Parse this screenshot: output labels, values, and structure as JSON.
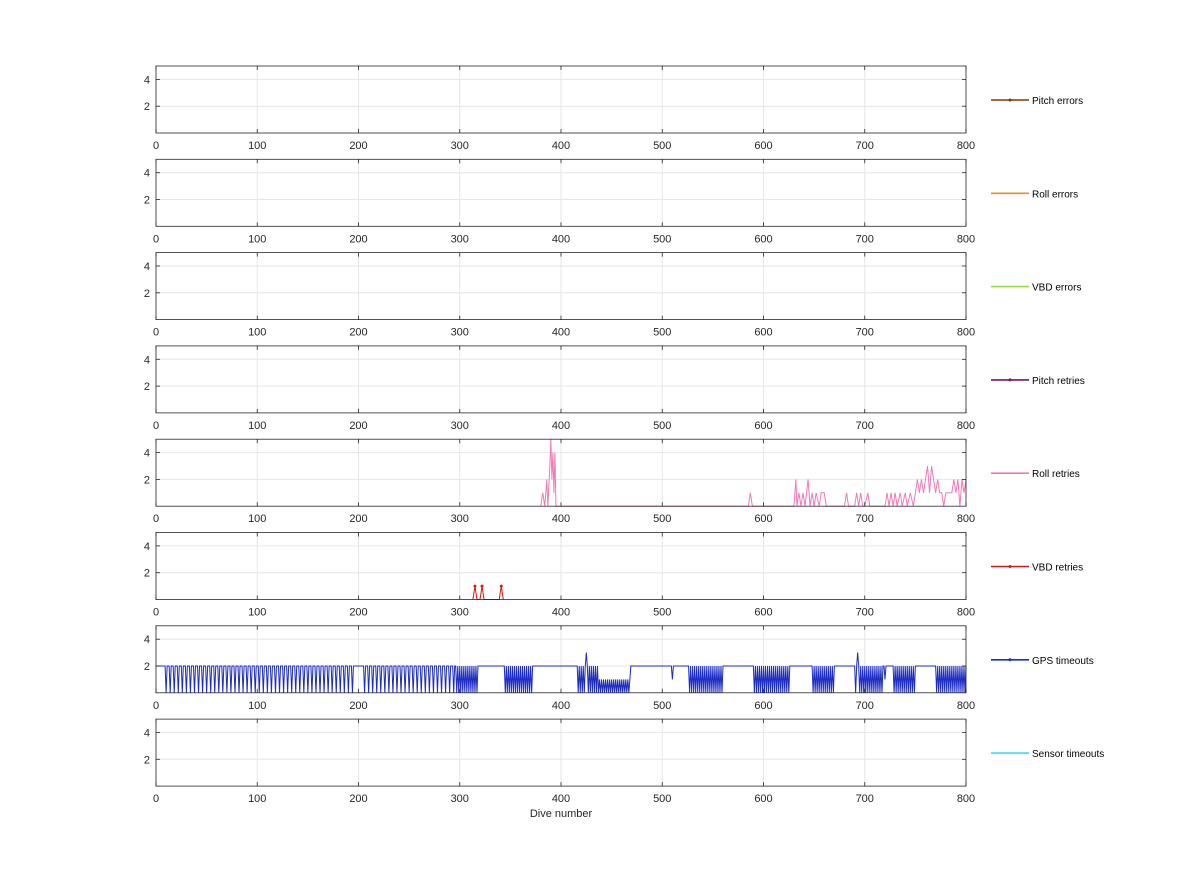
{
  "chart_data": {
    "type": "line",
    "xlabel": "Dive number",
    "xlim": [
      0,
      800
    ],
    "ylim": [
      0,
      5
    ],
    "xticks": [
      "0",
      "100",
      "200",
      "300",
      "400",
      "500",
      "600",
      "700",
      "800"
    ],
    "yticks": [
      "2",
      "4"
    ],
    "grid": true,
    "legend_placement": "right of each panel",
    "panels": [
      {
        "name": "Pitch errors",
        "color": "#7a3b0e",
        "marker": true,
        "points": []
      },
      {
        "name": "Roll errors",
        "color": "#f08c28",
        "marker": false,
        "points": []
      },
      {
        "name": "VBD errors",
        "color": "#8ee03c",
        "marker": false,
        "points": []
      },
      {
        "name": "Pitch retries",
        "color": "#6a1a6a",
        "marker": true,
        "points": []
      },
      {
        "name": "Roll retries",
        "color": "#f07ab8",
        "marker": false,
        "points": [
          [
            380,
            0
          ],
          [
            382,
            1
          ],
          [
            384,
            0
          ],
          [
            386,
            2
          ],
          [
            387,
            0
          ],
          [
            389,
            3
          ],
          [
            390,
            5
          ],
          [
            391,
            2
          ],
          [
            392,
            4
          ],
          [
            393,
            1
          ],
          [
            394,
            4
          ],
          [
            395,
            0
          ],
          [
            585,
            0
          ],
          [
            587,
            1
          ],
          [
            589,
            0
          ],
          [
            630,
            0
          ],
          [
            632,
            2
          ],
          [
            633,
            0
          ],
          [
            635,
            1
          ],
          [
            637,
            0
          ],
          [
            639,
            1
          ],
          [
            641,
            0
          ],
          [
            644,
            2
          ],
          [
            646,
            0
          ],
          [
            648,
            1
          ],
          [
            650,
            0
          ],
          [
            652,
            1
          ],
          [
            655,
            0
          ],
          [
            657,
            1
          ],
          [
            660,
            1
          ],
          [
            662,
            0
          ],
          [
            680,
            0
          ],
          [
            682,
            1
          ],
          [
            684,
            0
          ],
          [
            690,
            0
          ],
          [
            692,
            1
          ],
          [
            694,
            0
          ],
          [
            696,
            1
          ],
          [
            698,
            0
          ],
          [
            700,
            0
          ],
          [
            703,
            1
          ],
          [
            705,
            0
          ],
          [
            720,
            0
          ],
          [
            722,
            1
          ],
          [
            724,
            0
          ],
          [
            726,
            1
          ],
          [
            728,
            0
          ],
          [
            730,
            1
          ],
          [
            732,
            0
          ],
          [
            735,
            1
          ],
          [
            737,
            0
          ],
          [
            740,
            1
          ],
          [
            742,
            0
          ],
          [
            745,
            1
          ],
          [
            748,
            0
          ],
          [
            750,
            1
          ],
          [
            752,
            2
          ],
          [
            754,
            1
          ],
          [
            756,
            2
          ],
          [
            758,
            1
          ],
          [
            760,
            2
          ],
          [
            762,
            3
          ],
          [
            764,
            1
          ],
          [
            766,
            3
          ],
          [
            768,
            2
          ],
          [
            770,
            1
          ],
          [
            772,
            2
          ],
          [
            774,
            1
          ],
          [
            776,
            1
          ],
          [
            778,
            0
          ],
          [
            780,
            1
          ],
          [
            782,
            1
          ],
          [
            784,
            1
          ],
          [
            786,
            1
          ],
          [
            788,
            2
          ],
          [
            790,
            1
          ],
          [
            792,
            2
          ],
          [
            794,
            0
          ],
          [
            796,
            2
          ],
          [
            798,
            1
          ],
          [
            800,
            2
          ]
        ]
      },
      {
        "name": "VBD retries",
        "color": "#d41a1a",
        "marker": true,
        "points": [
          [
            313,
            0
          ],
          [
            315,
            1
          ],
          [
            317,
            0
          ],
          [
            320,
            0
          ],
          [
            322,
            1
          ],
          [
            324,
            0
          ],
          [
            339,
            0
          ],
          [
            341,
            1
          ],
          [
            343,
            0
          ]
        ]
      },
      {
        "name": "GPS timeouts",
        "color": "#1c2cc4",
        "marker": true,
        "pattern": {
          "base": 2,
          "dense_ranges": [
            [
              296,
              318
            ],
            [
              345,
              372
            ],
            [
              417,
              468
            ],
            [
              527,
              560
            ],
            [
              590,
              625
            ],
            [
              648,
              670
            ],
            [
              690,
              718
            ],
            [
              728,
              750
            ],
            [
              770,
              800
            ]
          ],
          "sparse_range": [
            10,
            296
          ],
          "sparse_period": 4,
          "low_block": [
            [
              438,
              468,
              1
            ]
          ],
          "spikes": [
            [
              425,
              3
            ],
            [
              693,
              3
            ],
            [
              510,
              1
            ],
            [
              720,
              1
            ]
          ],
          "gap": [
            198,
            202
          ]
        },
        "points": []
      },
      {
        "name": "Sensor timeouts",
        "color": "#33e0f0",
        "marker": false,
        "points": []
      }
    ]
  }
}
